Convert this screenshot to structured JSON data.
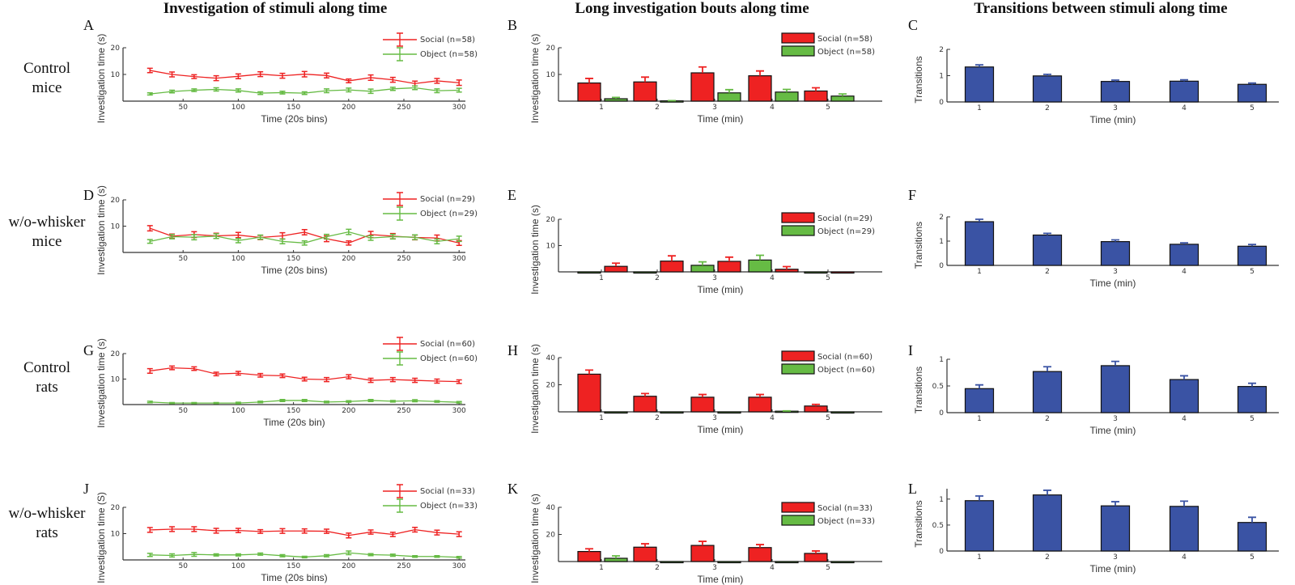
{
  "column_titles": [
    "Investigation of stimuli along time",
    "Long investigation bouts along time",
    "Transitions between stimuli along time"
  ],
  "row_labels": [
    [
      "Control",
      "mice"
    ],
    [
      "w/o-whisker",
      "mice"
    ],
    [
      "Control",
      "rats"
    ],
    [
      "w/o-whisker",
      "rats"
    ]
  ],
  "colors": {
    "social": "#ee2222",
    "object": "#66bb44",
    "transitions": "#3a53a4"
  },
  "chart_data": [
    {
      "panel": "A",
      "type": "line",
      "xlabel": "Time (20s bins)",
      "ylabel": "Investigation time (s)",
      "ylim": [
        0,
        20
      ],
      "yticks": [
        "10",
        "20"
      ],
      "xticks": [
        "50",
        "100",
        "150",
        "200",
        "250",
        "300"
      ],
      "x": [
        20,
        40,
        60,
        80,
        100,
        120,
        140,
        160,
        180,
        200,
        220,
        240,
        260,
        280,
        300
      ],
      "series": [
        {
          "name": "Social (n=58)",
          "values": [
            11.5,
            10,
            9.2,
            8.6,
            9.3,
            10.1,
            9.5,
            10.1,
            9.6,
            7.6,
            8.8,
            8.0,
            6.6,
            7.6,
            6.9
          ],
          "errors": [
            0.8,
            0.9,
            0.7,
            0.9,
            0.9,
            0.9,
            0.9,
            1.0,
            0.9,
            0.7,
            1.0,
            0.9,
            0.9,
            0.9,
            1.0
          ]
        },
        {
          "name": "Object (n=58)",
          "values": [
            2.7,
            3.6,
            4.1,
            4.4,
            4.0,
            3.0,
            3.2,
            3.0,
            3.9,
            4.2,
            3.7,
            4.6,
            5.0,
            3.9,
            4.1
          ],
          "errors": [
            0.4,
            0.5,
            0.5,
            0.6,
            0.6,
            0.5,
            0.5,
            0.5,
            0.7,
            0.7,
            0.8,
            0.6,
            0.7,
            0.7,
            0.7
          ]
        }
      ]
    },
    {
      "panel": "B",
      "type": "bar",
      "xlabel": "Time (min)",
      "ylabel": "Investigation time (s)",
      "ylim": [
        0,
        20
      ],
      "yticks": [
        "10",
        "20"
      ],
      "categories": [
        "1",
        "2",
        "3",
        "4",
        "5"
      ],
      "series": [
        {
          "name": "Social (n=58)",
          "values": [
            6.8,
            7.2,
            10.6,
            9.5,
            3.8
          ],
          "errors": [
            1.7,
            1.8,
            2.2,
            1.8,
            1.2
          ]
        },
        {
          "name": "Object (n=58)",
          "values": [
            0.9,
            0.1,
            3.1,
            3.4,
            1.9
          ],
          "errors": [
            0.5,
            0.1,
            1.2,
            1.0,
            0.8
          ]
        }
      ]
    },
    {
      "panel": "C",
      "type": "bar",
      "xlabel": "Time (min)",
      "ylabel": "Transitions",
      "ylim": [
        0,
        2
      ],
      "yticks": [
        "0",
        "1",
        "2"
      ],
      "categories": [
        "1",
        "2",
        "3",
        "4",
        "5"
      ],
      "series": [
        {
          "values": [
            1.33,
            0.99,
            0.78,
            0.79,
            0.67
          ],
          "errors": [
            0.08,
            0.06,
            0.05,
            0.05,
            0.05
          ]
        }
      ]
    },
    {
      "panel": "D",
      "type": "line",
      "xlabel": "Time (20s bins)",
      "ylabel": "Investigation time (s)",
      "ylim": [
        0,
        20
      ],
      "yticks": [
        "10",
        "20"
      ],
      "xticks": [
        "50",
        "100",
        "150",
        "200",
        "250",
        "300"
      ],
      "x": [
        20,
        40,
        60,
        80,
        100,
        120,
        140,
        160,
        180,
        200,
        220,
        240,
        260,
        280,
        300
      ],
      "series": [
        {
          "name": "Social (n=29)",
          "values": [
            9.2,
            6.2,
            6.8,
            6.3,
            6.6,
            5.7,
            6.3,
            7.7,
            5.2,
            3.6,
            6.8,
            6.2,
            5.7,
            5.5,
            3.6
          ],
          "errors": [
            1.0,
            0.8,
            1.1,
            1.0,
            1.0,
            0.8,
            1.2,
            1.0,
            1.1,
            0.8,
            1.2,
            1.0,
            0.9,
            1.1,
            0.9
          ]
        },
        {
          "name": "Object (n=29)",
          "values": [
            4.2,
            6.0,
            5.8,
            6.2,
            4.5,
            5.8,
            4.2,
            3.6,
            6.0,
            7.8,
            5.5,
            6.0,
            5.8,
            4.2,
            5.2
          ],
          "errors": [
            0.7,
            0.8,
            1.0,
            0.9,
            0.8,
            0.8,
            0.9,
            0.8,
            0.9,
            1.0,
            0.9,
            0.9,
            0.9,
            0.9,
            1.0
          ]
        }
      ]
    },
    {
      "panel": "E",
      "type": "bar",
      "xlabel": "Time (min)",
      "ylabel": "Investigation time (s)",
      "ylim": [
        0,
        20
      ],
      "yticks": [
        "10",
        "20"
      ],
      "categories": [
        "1",
        "2",
        "3",
        "4",
        "5"
      ],
      "series": [
        {
          "name": "Social (n=29)",
          "values": [
            2.1,
            4.1,
            4.0,
            1.0,
            0
          ],
          "errors": [
            1.2,
            2.0,
            1.6,
            1.0,
            0
          ]
        },
        {
          "name": "Object (n=29)",
          "values": [
            0,
            0,
            2.5,
            4.5,
            0
          ],
          "errors": [
            0,
            0,
            1.3,
            1.8,
            0
          ]
        }
      ]
    },
    {
      "panel": "F",
      "type": "bar",
      "xlabel": "Time (min)",
      "ylabel": "Transitions",
      "ylim": [
        0,
        2
      ],
      "yticks": [
        "0",
        "1",
        "2"
      ],
      "categories": [
        "1",
        "2",
        "3",
        "4",
        "5"
      ],
      "series": [
        {
          "values": [
            1.8,
            1.25,
            0.98,
            0.87,
            0.79
          ],
          "errors": [
            0.1,
            0.07,
            0.07,
            0.06,
            0.07
          ]
        }
      ]
    },
    {
      "panel": "G",
      "type": "line",
      "xlabel": "Time (20s bin)",
      "ylabel": "Investigation time (s)",
      "ylim": [
        0,
        20
      ],
      "yticks": [
        "10",
        "20"
      ],
      "xticks": [
        "50",
        "100",
        "150",
        "200",
        "250",
        "300"
      ],
      "x": [
        20,
        40,
        60,
        80,
        100,
        120,
        140,
        160,
        180,
        200,
        220,
        240,
        260,
        280,
        300
      ],
      "series": [
        {
          "name": "Social (n=60)",
          "values": [
            13.2,
            14.4,
            14.1,
            12.0,
            12.3,
            11.5,
            11.3,
            10.0,
            9.8,
            10.9,
            9.5,
            9.8,
            9.5,
            9.2,
            9.0
          ],
          "errors": [
            0.9,
            0.7,
            0.7,
            0.7,
            0.7,
            0.7,
            0.7,
            0.7,
            0.8,
            0.8,
            0.8,
            0.8,
            0.8,
            0.8,
            0.7
          ]
        },
        {
          "name": "Object (n=60)",
          "values": [
            1.0,
            0.6,
            0.6,
            0.6,
            0.6,
            1.0,
            1.6,
            1.6,
            1.0,
            1.2,
            1.6,
            1.3,
            1.5,
            1.2,
            0.9
          ],
          "errors": [
            0.3,
            0.2,
            0.2,
            0.2,
            0.3,
            0.3,
            0.4,
            0.4,
            0.3,
            0.3,
            0.4,
            0.3,
            0.4,
            0.3,
            0.3
          ]
        }
      ]
    },
    {
      "panel": "H",
      "type": "bar",
      "xlabel": "Time (min)",
      "ylabel": "Investigation time (s)",
      "ylim": [
        0,
        40
      ],
      "yticks": [
        "20",
        "40"
      ],
      "categories": [
        "1",
        "2",
        "3",
        "4",
        "5"
      ],
      "series": [
        {
          "name": "Social (n=60)",
          "values": [
            27.8,
            11.5,
            10.8,
            10.8,
            4.3
          ],
          "errors": [
            3.0,
            2.0,
            2.0,
            2.0,
            1.2
          ]
        },
        {
          "name": "Object (n=60)",
          "values": [
            0,
            0,
            0,
            0.5,
            0
          ],
          "errors": [
            0,
            0,
            0,
            0.2,
            0
          ]
        }
      ]
    },
    {
      "panel": "I",
      "type": "bar",
      "xlabel": "Time (min)",
      "ylabel": "Transitions",
      "ylim": [
        0,
        1
      ],
      "yticks": [
        "0",
        "0.5",
        "1"
      ],
      "categories": [
        "1",
        "2",
        "3",
        "4",
        "5"
      ],
      "series": [
        {
          "values": [
            0.45,
            0.77,
            0.88,
            0.62,
            0.49
          ],
          "errors": [
            0.07,
            0.09,
            0.08,
            0.07,
            0.06
          ]
        }
      ]
    },
    {
      "panel": "J",
      "type": "line",
      "xlabel": "Time (20s bins)",
      "ylabel": "Investigation time (S)",
      "ylim": [
        0,
        20
      ],
      "yticks": [
        "10",
        "20"
      ],
      "xticks": [
        "50",
        "100",
        "150",
        "200",
        "250",
        "300"
      ],
      "x": [
        20,
        40,
        60,
        80,
        100,
        120,
        140,
        160,
        180,
        200,
        220,
        240,
        260,
        280,
        300
      ],
      "series": [
        {
          "name": "Social (n=33)",
          "values": [
            11.4,
            11.7,
            11.7,
            11.1,
            11.2,
            10.8,
            11.0,
            11.0,
            10.9,
            9.3,
            10.6,
            9.7,
            11.5,
            10.4,
            9.8
          ],
          "errors": [
            0.9,
            0.9,
            0.9,
            0.9,
            0.8,
            0.7,
            0.9,
            0.8,
            0.8,
            0.9,
            0.8,
            0.8,
            0.9,
            0.9,
            0.9
          ]
        },
        {
          "name": "Object (n=33)",
          "values": [
            1.9,
            1.7,
            2.1,
            1.9,
            1.9,
            2.2,
            1.6,
            1.1,
            1.6,
            2.7,
            2.0,
            1.8,
            1.3,
            1.3,
            1.0
          ],
          "errors": [
            0.6,
            0.6,
            0.7,
            0.4,
            0.4,
            0.4,
            0.4,
            0.3,
            0.4,
            0.7,
            0.4,
            0.4,
            0.3,
            0.3,
            0.3
          ]
        }
      ]
    },
    {
      "panel": "K",
      "type": "bar",
      "xlabel": "Time (min)",
      "ylabel": "Investigation time (s)",
      "ylim": [
        0,
        40
      ],
      "yticks": [
        "20",
        "40"
      ],
      "categories": [
        "1",
        "2",
        "3",
        "4",
        "5"
      ],
      "series": [
        {
          "name": "Social (n=33)",
          "values": [
            7.4,
            10.6,
            11.9,
            10.3,
            6.0
          ],
          "errors": [
            2.0,
            2.5,
            3.0,
            2.2,
            1.8
          ]
        },
        {
          "name": "Object (n=33)",
          "values": [
            2.4,
            0,
            0,
            0,
            0
          ],
          "errors": [
            1.8,
            0,
            0,
            0,
            0
          ]
        }
      ]
    },
    {
      "panel": "L",
      "type": "bar",
      "xlabel": "Time (min)",
      "ylabel": "Transitions",
      "ylim": [
        0,
        1.2
      ],
      "yticks": [
        "0",
        "0.5",
        "1"
      ],
      "categories": [
        "1",
        "2",
        "3",
        "4",
        "5"
      ],
      "series": [
        {
          "values": [
            0.97,
            1.08,
            0.87,
            0.86,
            0.55
          ],
          "errors": [
            0.09,
            0.09,
            0.08,
            0.1,
            0.1
          ]
        }
      ]
    }
  ]
}
